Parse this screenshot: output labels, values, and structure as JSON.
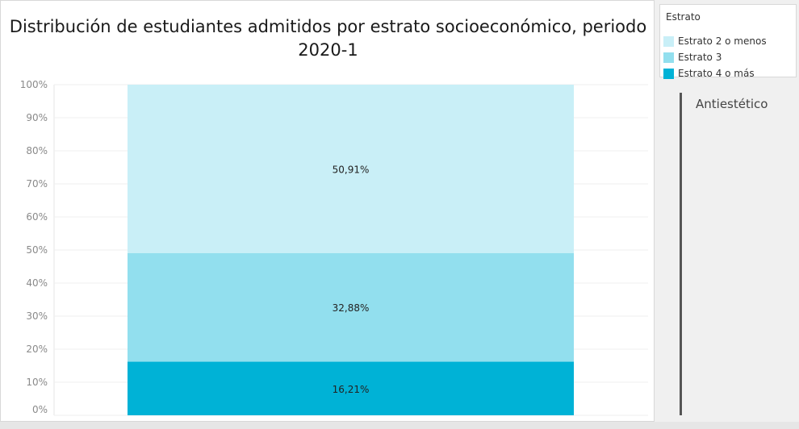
{
  "chart_data": {
    "type": "bar",
    "stacked": true,
    "title": "Distribución de estudiantes admitidos por estrato socioeconómico, periodo 2020-1",
    "xlabel": "",
    "ylabel": "",
    "ylim": [
      0,
      100
    ],
    "y_ticks": [
      "0%",
      "10%",
      "20%",
      "30%",
      "40%",
      "50%",
      "60%",
      "70%",
      "80%",
      "90%",
      "100%"
    ],
    "grid": true,
    "categories": [
      ""
    ],
    "series": [
      {
        "name": "Estrato 4 o más",
        "values": [
          16.21
        ],
        "label": "16,21%",
        "color": "#00b2d6"
      },
      {
        "name": "Estrato 3",
        "values": [
          32.88
        ],
        "label": "32,88%",
        "color": "#92dfee"
      },
      {
        "name": "Estrato 2 o menos",
        "values": [
          50.91
        ],
        "label": "50,91%",
        "color": "#c9eff7"
      }
    ]
  },
  "legend": {
    "title": "Estrato",
    "items": [
      {
        "label": "Estrato 2 o menos",
        "color": "#c9eff7"
      },
      {
        "label": "Estrato 3",
        "color": "#92dfee"
      },
      {
        "label": "Estrato 4 o más",
        "color": "#00b2d6"
      }
    ]
  },
  "side_note": "Antiestético"
}
